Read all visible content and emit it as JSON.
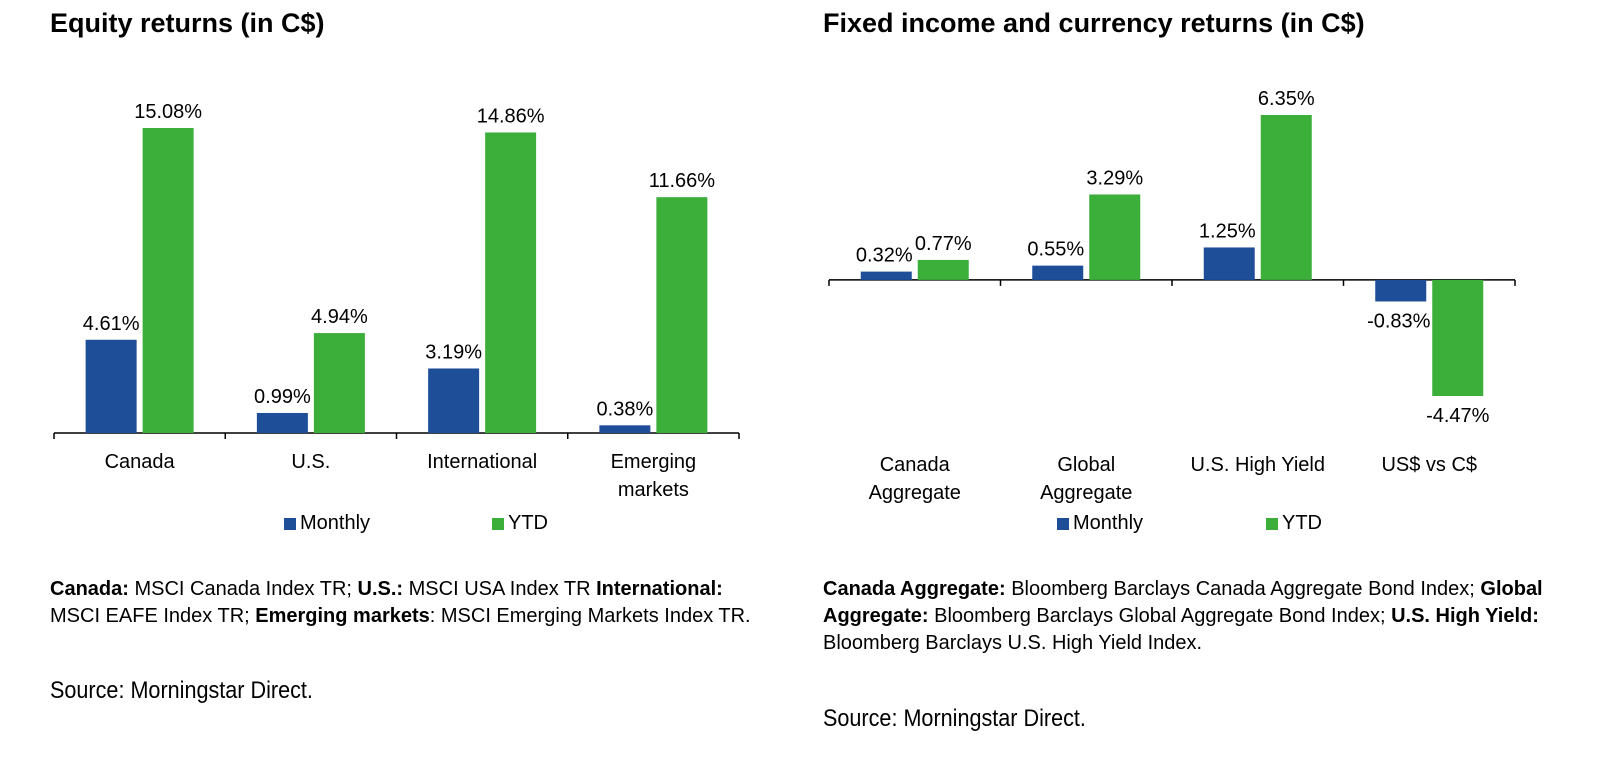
{
  "colors": {
    "monthly": "#1f4e99",
    "ytd": "#3cae3a",
    "axis": "#000000"
  },
  "legend": {
    "monthly": "Monthly",
    "ytd": "YTD"
  },
  "left": {
    "title": "Equity returns (in C$)",
    "notes": [
      {
        "b": "Canada:",
        "t": " MSCI Canada Index TR; "
      },
      {
        "b": "U.S.:",
        "t": " MSCI USA Index TR "
      },
      {
        "b": "International:",
        "t": " MSCI EAFE Index TR; "
      },
      {
        "b": "Emerging markets",
        "t": ": MSCI Emerging Markets Index TR."
      }
    ],
    "source": "Source: Morningstar Direct."
  },
  "right": {
    "title": "Fixed income and currency returns (in C$)",
    "notes": [
      {
        "b": "Canada Aggregate:",
        "t": " Bloomberg Barclays Canada Aggregate Bond Index; "
      },
      {
        "b": "Global Aggregate:",
        "t": " Bloomberg Barclays Global Aggregate Bond Index; "
      },
      {
        "b": "U.S. High Yield:",
        "t": " Bloomberg Barclays U.S. High Yield Index."
      }
    ],
    "source": "Source: Morningstar Direct."
  },
  "chart_data": [
    {
      "type": "bar",
      "title": "Equity returns (in C$)",
      "categories": [
        [
          "Canada"
        ],
        [
          "U.S."
        ],
        [
          "International"
        ],
        [
          "Emerging",
          "markets"
        ]
      ],
      "series": [
        {
          "name": "Monthly",
          "values": [
            4.61,
            0.99,
            3.19,
            0.38
          ],
          "labels": [
            "4.61%",
            "0.99%",
            "3.19%",
            "0.38%"
          ]
        },
        {
          "name": "YTD",
          "values": [
            15.08,
            4.94,
            14.86,
            11.66
          ],
          "labels": [
            "15.08%",
            "4.94%",
            "14.86%",
            "11.66%"
          ]
        }
      ],
      "ylim": [
        0,
        15.08
      ],
      "legend": "bottom"
    },
    {
      "type": "bar",
      "title": "Fixed income and currency returns (in C$)",
      "categories": [
        [
          "Canada",
          "Aggregate"
        ],
        [
          "Global",
          "Aggregate"
        ],
        [
          "U.S. High Yield"
        ],
        [
          "US$ vs C$"
        ]
      ],
      "series": [
        {
          "name": "Monthly",
          "values": [
            0.32,
            0.55,
            1.25,
            -0.83
          ],
          "labels": [
            "0.32%",
            "0.55%",
            "1.25%",
            "-0.83%"
          ]
        },
        {
          "name": "YTD",
          "values": [
            0.77,
            3.29,
            6.35,
            -4.47
          ],
          "labels": [
            "0.77%",
            "3.29%",
            "6.35%",
            "-4.47%"
          ]
        }
      ],
      "ylim": [
        -4.47,
        6.35
      ],
      "legend": "bottom"
    }
  ]
}
